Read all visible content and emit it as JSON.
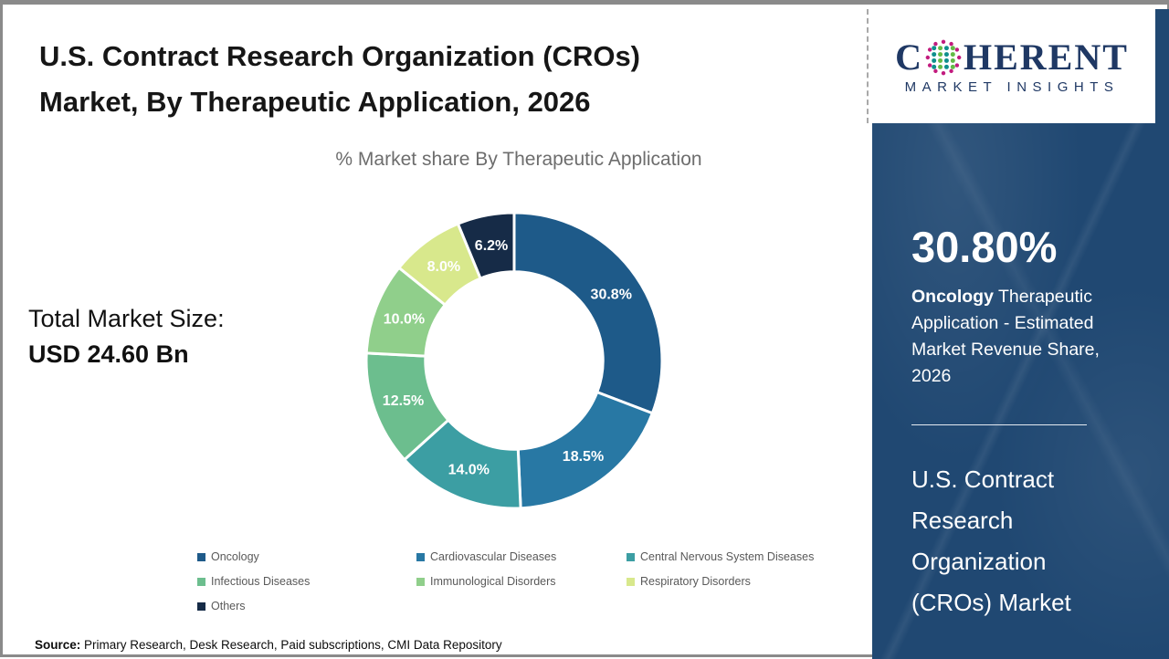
{
  "header": {
    "title_line1": "U.S. Contract Research Organization (CROs)",
    "title_line2": "Market,  By Therapeutic Application, 2026",
    "subtitle": "% Market share  By Therapeutic Application"
  },
  "logo": {
    "word_start": "C",
    "word_end": "HERENT",
    "tagline": "MARKET INSIGHTS",
    "brand_color": "#1F3864",
    "globe_colors": {
      "outer": "#C21B7E",
      "teal": "#0F8F8D",
      "green": "#63BB46"
    }
  },
  "left_panel": {
    "total_label": "Total Market Size:",
    "total_value": "USD 24.60 Bn"
  },
  "chart_data": {
    "type": "pie",
    "donut": true,
    "title": "% Market share  By Therapeutic Application",
    "unit": "%",
    "start_angle_deg": 0,
    "direction": "clockwise",
    "inner_radius_ratio": 0.6,
    "legend_position": "bottom",
    "segments": [
      {
        "label": "Oncology",
        "value": 30.8,
        "display": "30.8%",
        "color": "#1E5A89"
      },
      {
        "label": "Cardiovascular Diseases",
        "value": 18.5,
        "display": "18.5%",
        "color": "#2878A4"
      },
      {
        "label": "Central Nervous System Diseases",
        "value": 14.0,
        "display": "14.0%",
        "color": "#3C9EA3"
      },
      {
        "label": "Infectious Diseases",
        "value": 12.5,
        "display": "12.5%",
        "color": "#6CBE8E"
      },
      {
        "label": "Immunological Disorders",
        "value": 10.0,
        "display": "10.0%",
        "color": "#90CF8B"
      },
      {
        "label": "Respiratory Disorders",
        "value": 8.0,
        "display": "8.0%",
        "color": "#D8E88C"
      },
      {
        "label": "Others",
        "value": 6.2,
        "display": "6.2%",
        "color": "#162B47"
      }
    ]
  },
  "sidebar": {
    "bg_color": "#204872",
    "highlight_value": "30.80%",
    "highlight_bold": "Oncology",
    "highlight_rest": " Therapeutic Application - Estimated Market Revenue Share, 2026",
    "market_name": "U.S. Contract Research Organization (CROs) Market"
  },
  "footer": {
    "source_label": "Source:",
    "source_text": " Primary Research, Desk Research, Paid subscriptions, CMI Data Repository"
  }
}
